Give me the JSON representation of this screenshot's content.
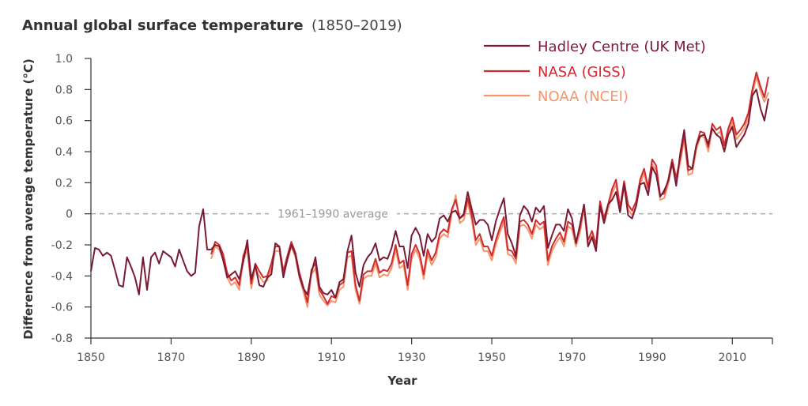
{
  "chart_data": {
    "type": "line",
    "title": "Annual global surface temperature",
    "subtitle": "(1850–2019)",
    "xlabel": "Year",
    "ylabel": "Difference from average temperature (°C)",
    "xlim": [
      1850,
      2020
    ],
    "ylim": [
      -0.8,
      1.0
    ],
    "x_ticks": [
      1850,
      1870,
      1890,
      1910,
      1930,
      1950,
      1970,
      1990,
      2010
    ],
    "y_ticks": [
      {
        "value": 1.0,
        "label": "1.0"
      },
      {
        "value": 0.8,
        "label": "0.8"
      },
      {
        "value": 0.6,
        "label": "0.6"
      },
      {
        "value": 0.4,
        "label": "0.4"
      },
      {
        "value": 0.2,
        "label": "0.2"
      },
      {
        "value": 0,
        "label": "0"
      },
      {
        "value": -0.2,
        "label": "-0.2"
      },
      {
        "value": -0.4,
        "label": "-0.4"
      },
      {
        "value": -0.6,
        "label": "-0.6"
      },
      {
        "value": -0.8,
        "label": "-0.8"
      }
    ],
    "grid": false,
    "legend_position": "top-right",
    "reference_line": {
      "value": 0,
      "label": "1961–1990 average",
      "color": "#aaaaaa"
    },
    "series": [
      {
        "name": "Hadley Centre (UK Met)",
        "color": "#7a1a35",
        "start_year": 1850,
        "values": [
          -0.37,
          -0.22,
          -0.23,
          -0.27,
          -0.25,
          -0.27,
          -0.36,
          -0.46,
          -0.47,
          -0.28,
          -0.34,
          -0.41,
          -0.52,
          -0.28,
          -0.49,
          -0.28,
          -0.25,
          -0.32,
          -0.24,
          -0.26,
          -0.28,
          -0.34,
          -0.23,
          -0.3,
          -0.37,
          -0.4,
          -0.38,
          -0.08,
          0.03,
          -0.23,
          -0.23,
          -0.2,
          -0.21,
          -0.3,
          -0.41,
          -0.39,
          -0.37,
          -0.42,
          -0.31,
          -0.17,
          -0.42,
          -0.33,
          -0.46,
          -0.47,
          -0.41,
          -0.39,
          -0.19,
          -0.21,
          -0.41,
          -0.29,
          -0.2,
          -0.26,
          -0.4,
          -0.48,
          -0.52,
          -0.38,
          -0.28,
          -0.47,
          -0.51,
          -0.52,
          -0.49,
          -0.54,
          -0.44,
          -0.42,
          -0.24,
          -0.14,
          -0.38,
          -0.47,
          -0.33,
          -0.28,
          -0.25,
          -0.19,
          -0.3,
          -0.28,
          -0.29,
          -0.22,
          -0.11,
          -0.21,
          -0.21,
          -0.35,
          -0.14,
          -0.09,
          -0.14,
          -0.27,
          -0.13,
          -0.18,
          -0.15,
          -0.03,
          -0.01,
          -0.05,
          0.01,
          0.02,
          -0.03,
          0.0,
          0.14,
          0.03,
          -0.07,
          -0.04,
          -0.04,
          -0.07,
          -0.17,
          -0.05,
          0.03,
          0.1,
          -0.13,
          -0.19,
          -0.27,
          -0.01,
          0.05,
          0.02,
          -0.05,
          0.04,
          0.01,
          0.05,
          -0.22,
          -0.14,
          -0.07,
          -0.07,
          -0.11,
          0.03,
          -0.03,
          -0.19,
          -0.07,
          0.06,
          -0.21,
          -0.15,
          -0.24,
          0.05,
          -0.06,
          0.06,
          0.09,
          0.14,
          0.01,
          0.19,
          -0.01,
          -0.03,
          0.05,
          0.19,
          0.2,
          0.12,
          0.3,
          0.25,
          0.11,
          0.15,
          0.21,
          0.33,
          0.18,
          0.39,
          0.54,
          0.31,
          0.29,
          0.44,
          0.5,
          0.51,
          0.45,
          0.55,
          0.51,
          0.49,
          0.4,
          0.51,
          0.56,
          0.43,
          0.47,
          0.51,
          0.58,
          0.76,
          0.8,
          0.68,
          0.6,
          0.74
        ]
      },
      {
        "name": "NASA (GISS)",
        "color": "#d12a2f",
        "start_year": 1880,
        "values": [
          -0.26,
          -0.18,
          -0.2,
          -0.26,
          -0.38,
          -0.43,
          -0.41,
          -0.46,
          -0.27,
          -0.2,
          -0.45,
          -0.32,
          -0.37,
          -0.41,
          -0.4,
          -0.32,
          -0.21,
          -0.21,
          -0.37,
          -0.27,
          -0.18,
          -0.25,
          -0.38,
          -0.47,
          -0.57,
          -0.36,
          -0.32,
          -0.49,
          -0.53,
          -0.58,
          -0.53,
          -0.54,
          -0.46,
          -0.44,
          -0.25,
          -0.24,
          -0.46,
          -0.56,
          -0.39,
          -0.37,
          -0.37,
          -0.29,
          -0.38,
          -0.36,
          -0.37,
          -0.32,
          -0.2,
          -0.32,
          -0.3,
          -0.46,
          -0.26,
          -0.2,
          -0.26,
          -0.39,
          -0.23,
          -0.3,
          -0.25,
          -0.13,
          -0.1,
          -0.12,
          0.03,
          0.09,
          -0.03,
          -0.01,
          0.1,
          -0.01,
          -0.17,
          -0.13,
          -0.21,
          -0.21,
          -0.27,
          -0.17,
          -0.09,
          -0.02,
          -0.23,
          -0.24,
          -0.29,
          -0.05,
          -0.04,
          -0.07,
          -0.13,
          -0.04,
          -0.07,
          -0.05,
          -0.3,
          -0.21,
          -0.16,
          -0.12,
          -0.18,
          -0.05,
          -0.07,
          -0.18,
          -0.09,
          0.06,
          -0.17,
          -0.11,
          -0.2,
          0.08,
          -0.03,
          0.06,
          0.16,
          0.22,
          0.04,
          0.21,
          0.06,
          0.02,
          0.08,
          0.22,
          0.29,
          0.17,
          0.35,
          0.31,
          0.12,
          0.13,
          0.22,
          0.35,
          0.23,
          0.36,
          0.51,
          0.28,
          0.29,
          0.44,
          0.53,
          0.52,
          0.43,
          0.58,
          0.54,
          0.56,
          0.44,
          0.55,
          0.62,
          0.51,
          0.54,
          0.58,
          0.65,
          0.8,
          0.91,
          0.82,
          0.75,
          0.88
        ]
      },
      {
        "name": "NOAA (NCEI)",
        "color": "#f4956b",
        "start_year": 1880,
        "values": [
          -0.29,
          -0.21,
          -0.23,
          -0.29,
          -0.41,
          -0.46,
          -0.44,
          -0.49,
          -0.3,
          -0.23,
          -0.48,
          -0.35,
          -0.4,
          -0.44,
          -0.43,
          -0.35,
          -0.24,
          -0.24,
          -0.4,
          -0.3,
          -0.21,
          -0.28,
          -0.41,
          -0.5,
          -0.6,
          -0.39,
          -0.35,
          -0.52,
          -0.56,
          -0.59,
          -0.56,
          -0.57,
          -0.49,
          -0.47,
          -0.28,
          -0.27,
          -0.49,
          -0.58,
          -0.42,
          -0.4,
          -0.4,
          -0.32,
          -0.41,
          -0.39,
          -0.4,
          -0.35,
          -0.23,
          -0.35,
          -0.33,
          -0.49,
          -0.29,
          -0.23,
          -0.29,
          -0.42,
          -0.26,
          -0.33,
          -0.28,
          -0.16,
          -0.13,
          -0.15,
          0.0,
          0.12,
          -0.06,
          -0.04,
          0.07,
          -0.04,
          -0.2,
          -0.16,
          -0.24,
          -0.24,
          -0.3,
          -0.2,
          -0.12,
          -0.05,
          -0.26,
          -0.27,
          -0.32,
          -0.08,
          -0.07,
          -0.1,
          -0.16,
          -0.07,
          -0.1,
          -0.08,
          -0.33,
          -0.24,
          -0.19,
          -0.15,
          -0.21,
          -0.08,
          -0.1,
          -0.21,
          -0.12,
          0.03,
          -0.2,
          -0.14,
          -0.23,
          0.05,
          -0.06,
          0.03,
          0.13,
          0.19,
          0.01,
          0.18,
          0.03,
          -0.01,
          0.05,
          0.19,
          0.26,
          0.14,
          0.32,
          0.28,
          0.09,
          0.1,
          0.19,
          0.32,
          0.2,
          0.33,
          0.48,
          0.25,
          0.26,
          0.41,
          0.5,
          0.49,
          0.4,
          0.55,
          0.51,
          0.53,
          0.41,
          0.52,
          0.59,
          0.48,
          0.51,
          0.55,
          0.62,
          0.77,
          0.88,
          0.79,
          0.72,
          0.78
        ]
      }
    ]
  }
}
